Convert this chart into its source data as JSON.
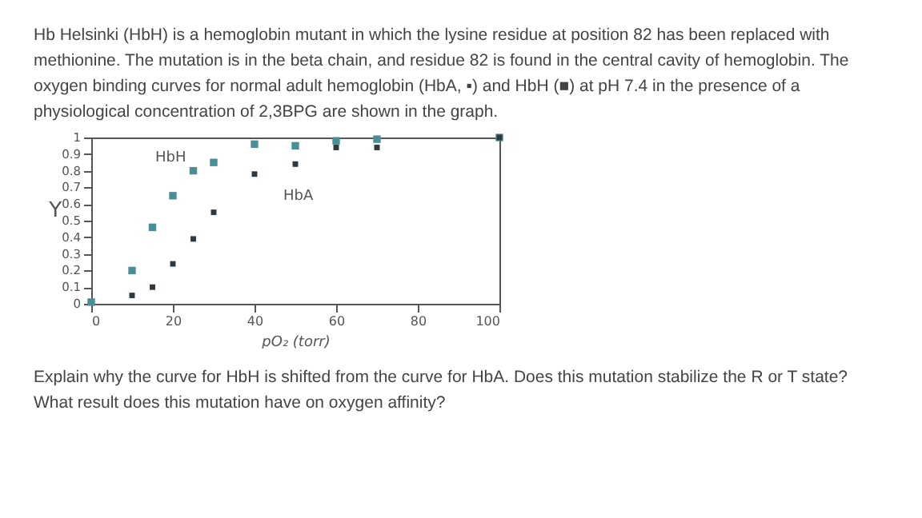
{
  "chart_data": {
    "type": "scatter",
    "title": "Hb Helsinki (HbH) is a hemoglobin mutant in which the lysine residue at position 82 has been replaced with methionine. The mutation is in the beta chain, and residue 82 is found in the central cavity of hemoglobin. The oxygen binding curves for normal adult hemoglobin (HbA, ▪) and HbH (■) at pH 7.4 in the presence of a physiological concentration of 2,3BPG are shown in the graph.",
    "annotations": [
      "Explain why the curve for HbH is shifted from the curve for HbA. Does this mutation stabilize the R or T state? What result does this mutation have on oxygen affinity?"
    ],
    "xlabel": "pO₂ (torr)",
    "ylabel": "Y",
    "xlim": [
      0,
      100
    ],
    "xticks": [
      0,
      20,
      40,
      60,
      80,
      100
    ],
    "ylim": [
      0,
      1
    ],
    "yticks": [
      0,
      0.1,
      0.2,
      0.3,
      0.4,
      0.5,
      0.6,
      0.7,
      0.8,
      0.9,
      1
    ],
    "marker": "square",
    "legend": false,
    "grid": false,
    "series": [
      {
        "name": "HbH",
        "color": "#4a8f96",
        "x": [
          0,
          10,
          15,
          20,
          25,
          30,
          40,
          50,
          60,
          70,
          100
        ],
        "values": [
          0.01,
          0.2,
          0.46,
          0.65,
          0.8,
          0.85,
          0.96,
          0.95,
          0.98,
          0.99,
          1
        ]
      },
      {
        "name": "HbA",
        "color": "#2e3a40",
        "x": [
          10,
          15,
          20,
          25,
          30,
          40,
          50,
          60,
          70,
          100
        ],
        "values": [
          0.05,
          0.1,
          0.24,
          0.39,
          0.55,
          0.78,
          0.84,
          0.94,
          0.94,
          1
        ]
      }
    ]
  }
}
